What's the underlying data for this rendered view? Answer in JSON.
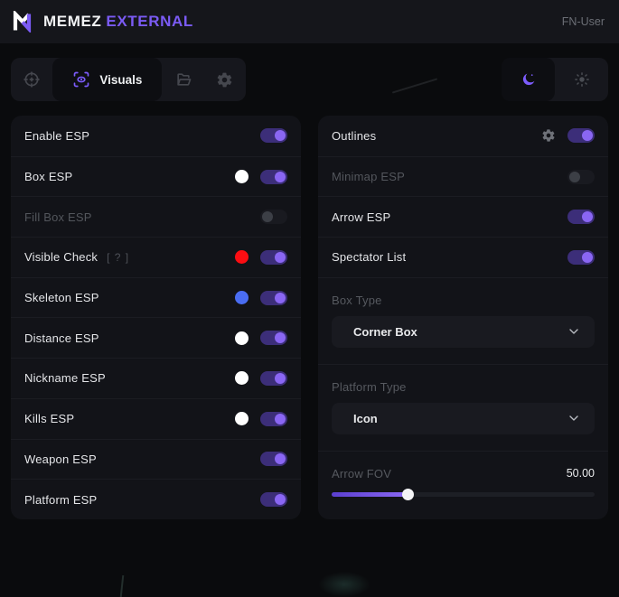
{
  "header": {
    "brand_primary": "MEMEZ",
    "brand_accent": "EXTERNAL",
    "user": "FN-User"
  },
  "tabs": {
    "items": [
      {
        "name": "aimbot",
        "icon": "crosshair-icon",
        "active": false
      },
      {
        "name": "visuals",
        "icon": "scan-eye-icon",
        "label": "Visuals",
        "active": true
      },
      {
        "name": "configs",
        "icon": "folder-icon",
        "active": false
      },
      {
        "name": "settings",
        "icon": "gear-icon",
        "active": false
      }
    ]
  },
  "theme": {
    "options": [
      "dark",
      "light"
    ],
    "active": "dark"
  },
  "left_panel": {
    "rows": [
      {
        "label": "Enable ESP",
        "toggle": "on"
      },
      {
        "label": "Box ESP",
        "color": "#ffffff",
        "toggle": "on"
      },
      {
        "label": "Fill Box ESP",
        "toggle": "off",
        "disabled": true
      },
      {
        "label": "Visible Check",
        "hint": "[ ? ]",
        "color": "#fb0d12",
        "toggle": "on"
      },
      {
        "label": "Skeleton ESP",
        "color": "#4a6df2",
        "toggle": "on"
      },
      {
        "label": "Distance ESP",
        "color": "#ffffff",
        "toggle": "on"
      },
      {
        "label": "Nickname ESP",
        "color": "#ffffff",
        "toggle": "on"
      },
      {
        "label": "Kills ESP",
        "color": "#ffffff",
        "toggle": "on"
      },
      {
        "label": "Weapon ESP",
        "toggle": "on"
      },
      {
        "label": "Platform ESP",
        "toggle": "on"
      }
    ]
  },
  "right_panel": {
    "rows": [
      {
        "label": "Outlines",
        "has_settings_gear": true,
        "toggle": "on"
      },
      {
        "label": "Minimap ESP",
        "toggle": "off",
        "disabled": true
      },
      {
        "label": "Arrow ESP",
        "toggle": "on"
      },
      {
        "label": "Spectator List",
        "toggle": "on"
      }
    ],
    "selects": [
      {
        "label": "Box Type",
        "value": "Corner Box"
      },
      {
        "label": "Platform Type",
        "value": "Icon"
      }
    ],
    "slider": {
      "label": "Arrow FOV",
      "value": "50.00",
      "percent": 29
    }
  },
  "colors": {
    "accent": "#7c5cfc",
    "toggle_on_track": "#3c2e79",
    "toggle_knob_on": "#8a66f3"
  }
}
